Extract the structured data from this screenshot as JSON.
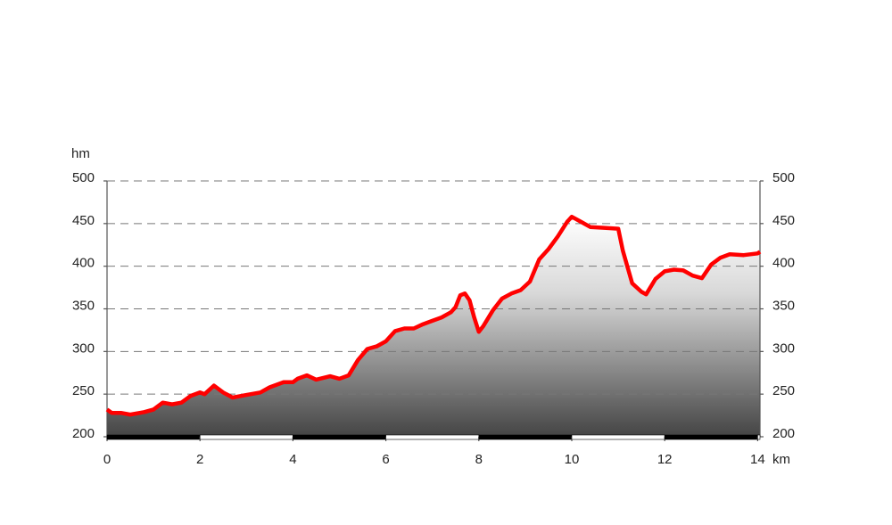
{
  "chart_data": {
    "type": "area",
    "y_label": "hm",
    "x_label": "km",
    "x": [
      0,
      0.1,
      0.3,
      0.5,
      0.8,
      1.0,
      1.2,
      1.4,
      1.6,
      1.8,
      2.0,
      2.1,
      2.3,
      2.5,
      2.7,
      3.0,
      3.3,
      3.5,
      3.8,
      4.0,
      4.1,
      4.3,
      4.5,
      4.8,
      5.0,
      5.2,
      5.4,
      5.6,
      5.8,
      6.0,
      6.2,
      6.4,
      6.6,
      6.8,
      7.0,
      7.2,
      7.4,
      7.5,
      7.6,
      7.7,
      7.8,
      7.9,
      8.0,
      8.1,
      8.3,
      8.5,
      8.7,
      8.9,
      9.1,
      9.3,
      9.5,
      9.7,
      9.9,
      10.0,
      10.2,
      10.4,
      10.7,
      11.0,
      11.1,
      11.3,
      11.5,
      11.6,
      11.8,
      12.0,
      12.2,
      12.4,
      12.6,
      12.8,
      13.0,
      13.2,
      13.4,
      13.7,
      14.0,
      14.05
    ],
    "values": [
      232,
      228,
      228,
      226,
      229,
      232,
      240,
      238,
      240,
      248,
      252,
      250,
      260,
      252,
      246,
      249,
      252,
      258,
      264,
      264,
      268,
      272,
      267,
      271,
      268,
      272,
      290,
      303,
      306,
      312,
      324,
      327,
      327,
      332,
      336,
      340,
      346,
      352,
      366,
      368,
      360,
      340,
      323,
      330,
      348,
      362,
      368,
      372,
      382,
      408,
      420,
      435,
      452,
      458,
      452,
      446,
      445,
      444,
      418,
      380,
      370,
      367,
      385,
      394,
      396,
      395,
      389,
      386,
      402,
      410,
      414,
      413,
      415,
      417
    ],
    "color": "#ff0000",
    "xlim": [
      0,
      14.05
    ],
    "xticks": [
      0,
      2,
      4,
      6,
      8,
      10,
      12,
      14
    ],
    "ylim": [
      200,
      500
    ],
    "yticks": [
      200,
      250,
      300,
      350,
      400,
      450,
      500
    ],
    "grid": true
  }
}
